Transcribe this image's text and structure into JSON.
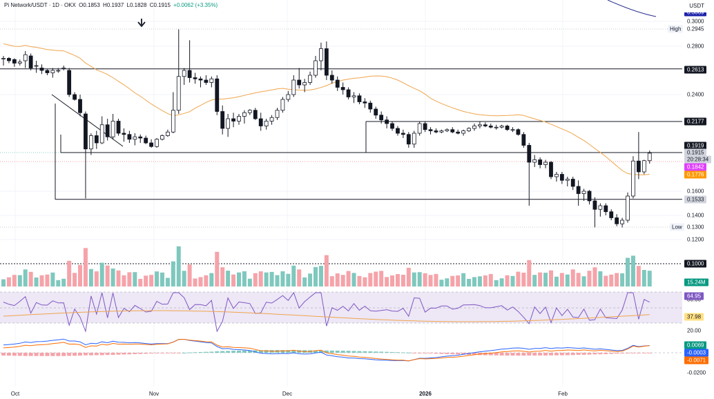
{
  "header": {
    "symbol": "Pi Network/USDT · 1D · OKX",
    "open": "O0.1853",
    "high": "H0.1937",
    "low": "L0.1828",
    "close": "C0.1915",
    "change": "+0.0062 (+3.35%)"
  },
  "axis_unit": "USDT",
  "price_ticks": [
    "0.3000",
    "0.2800",
    "0.2400",
    "0.1600",
    "0.1400",
    "0.1200"
  ],
  "price_labels": {
    "high_tag": "High",
    "high_value": "0.2945",
    "low_tag": "Low",
    "low_value": "0.1300",
    "top_partial": "0.3069",
    "level_2613": "0.2613",
    "level_2177": "0.2177",
    "level_1919": "0.1919",
    "last_price": "0.1915",
    "countdown": "20:28:34",
    "ma_fast": "0.1842",
    "ma_slow": "0.1776",
    "level_1533": "0.1533",
    "level_1000": "0.1000"
  },
  "volume_label": "15.24M",
  "rsi": {
    "value": "64.95",
    "partial": "80.00",
    "ma_value": "37.98",
    "tick_20": "20.00"
  },
  "macd": {
    "histogram": "0.0069",
    "macd_line": "-0.0003",
    "signal_line": "-0.0071",
    "tick_low": "-0.0200"
  },
  "x_labels": [
    {
      "text": "Oct",
      "bold": false
    },
    {
      "text": "Nov",
      "bold": false
    },
    {
      "text": "Dec",
      "bold": false
    },
    {
      "text": "2026",
      "bold": true
    },
    {
      "text": "Feb",
      "bold": false
    }
  ],
  "colors": {
    "up": "#089981",
    "down": "#f23645",
    "volume_up": "#7fc8be",
    "volume_down": "#f5a3a9",
    "ma_line": "#f0a44b",
    "rsi_line": "#7e57c2",
    "rsi_band": "#ede7f6",
    "macd_line": "#2962ff",
    "signal_line": "#ff6d00",
    "pill_pink": "#e040fb",
    "pill_orange": "#ff9800",
    "pill_black": "#131722",
    "pill_blue": "#1e22aa"
  },
  "icons": {
    "marker": "down-arrow-icon"
  },
  "chart_data": {
    "type": "candlestick",
    "x": [
      "Oct",
      "Nov",
      "Dec",
      "2026",
      "Feb"
    ],
    "ohlc_approx": [
      [
        0.27,
        0.272,
        0.264,
        0.27
      ],
      [
        0.27,
        0.271,
        0.266,
        0.268
      ],
      [
        0.269,
        0.27,
        0.263,
        0.266
      ],
      [
        0.266,
        0.269,
        0.264,
        0.267
      ],
      [
        0.268,
        0.276,
        0.262,
        0.273
      ],
      [
        0.272,
        0.274,
        0.26,
        0.262
      ],
      [
        0.264,
        0.268,
        0.258,
        0.264
      ],
      [
        0.262,
        0.265,
        0.257,
        0.26
      ],
      [
        0.26,
        0.261,
        0.256,
        0.258
      ],
      [
        0.258,
        0.262,
        0.254,
        0.26
      ],
      [
        0.26,
        0.262,
        0.258,
        0.26
      ],
      [
        0.262,
        0.264,
        0.26,
        0.262
      ],
      [
        0.26,
        0.262,
        0.238,
        0.24
      ],
      [
        0.24,
        0.242,
        0.235,
        0.236
      ],
      [
        0.236,
        0.24,
        0.222,
        0.225
      ],
      [
        0.224,
        0.226,
        0.154,
        0.195
      ],
      [
        0.195,
        0.208,
        0.19,
        0.206
      ],
      [
        0.206,
        0.21,
        0.195,
        0.2
      ],
      [
        0.2,
        0.222,
        0.199,
        0.215
      ],
      [
        0.215,
        0.22,
        0.202,
        0.205
      ],
      [
        0.205,
        0.224,
        0.203,
        0.218
      ],
      [
        0.218,
        0.22,
        0.206,
        0.208
      ],
      [
        0.208,
        0.212,
        0.201,
        0.207
      ],
      [
        0.207,
        0.21,
        0.2,
        0.203
      ],
      [
        0.203,
        0.208,
        0.198,
        0.205
      ],
      [
        0.205,
        0.207,
        0.2,
        0.204
      ],
      [
        0.204,
        0.206,
        0.199,
        0.2
      ],
      [
        0.2,
        0.203,
        0.196,
        0.197
      ],
      [
        0.197,
        0.204,
        0.196,
        0.203
      ],
      [
        0.203,
        0.207,
        0.202,
        0.206
      ],
      [
        0.206,
        0.211,
        0.205,
        0.209
      ],
      [
        0.209,
        0.242,
        0.208,
        0.227
      ],
      [
        0.227,
        0.294,
        0.224,
        0.255
      ],
      [
        0.255,
        0.262,
        0.248,
        0.26
      ],
      [
        0.26,
        0.285,
        0.25,
        0.254
      ],
      [
        0.254,
        0.258,
        0.249,
        0.253
      ],
      [
        0.253,
        0.255,
        0.246,
        0.252
      ],
      [
        0.252,
        0.256,
        0.248,
        0.25
      ],
      [
        0.25,
        0.255,
        0.246,
        0.253
      ],
      [
        0.253,
        0.256,
        0.223,
        0.226
      ],
      [
        0.226,
        0.231,
        0.207,
        0.212
      ],
      [
        0.212,
        0.224,
        0.205,
        0.22
      ],
      [
        0.22,
        0.225,
        0.213,
        0.218
      ],
      [
        0.218,
        0.224,
        0.215,
        0.222
      ],
      [
        0.222,
        0.227,
        0.216,
        0.225
      ],
      [
        0.225,
        0.228,
        0.223,
        0.227
      ],
      [
        0.227,
        0.229,
        0.219,
        0.22
      ],
      [
        0.22,
        0.225,
        0.21,
        0.214
      ],
      [
        0.214,
        0.22,
        0.211,
        0.218
      ],
      [
        0.218,
        0.223,
        0.215,
        0.221
      ],
      [
        0.221,
        0.229,
        0.219,
        0.227
      ],
      [
        0.227,
        0.238,
        0.225,
        0.236
      ],
      [
        0.236,
        0.243,
        0.234,
        0.24
      ],
      [
        0.24,
        0.256,
        0.238,
        0.252
      ],
      [
        0.252,
        0.262,
        0.245,
        0.248
      ],
      [
        0.248,
        0.253,
        0.242,
        0.25
      ],
      [
        0.25,
        0.259,
        0.248,
        0.256
      ],
      [
        0.256,
        0.272,
        0.254,
        0.268
      ],
      [
        0.268,
        0.283,
        0.26,
        0.278
      ],
      [
        0.278,
        0.284,
        0.252,
        0.256
      ],
      [
        0.256,
        0.26,
        0.249,
        0.252
      ],
      [
        0.252,
        0.255,
        0.243,
        0.246
      ],
      [
        0.246,
        0.25,
        0.24,
        0.244
      ],
      [
        0.244,
        0.246,
        0.236,
        0.238
      ],
      [
        0.238,
        0.242,
        0.233,
        0.239
      ],
      [
        0.239,
        0.241,
        0.232,
        0.234
      ],
      [
        0.234,
        0.237,
        0.229,
        0.233
      ],
      [
        0.233,
        0.235,
        0.225,
        0.228
      ],
      [
        0.228,
        0.23,
        0.22,
        0.223
      ],
      [
        0.223,
        0.226,
        0.216,
        0.219
      ],
      [
        0.219,
        0.222,
        0.212,
        0.216
      ],
      [
        0.216,
        0.218,
        0.21,
        0.212
      ],
      [
        0.212,
        0.214,
        0.206,
        0.208
      ],
      [
        0.208,
        0.211,
        0.204,
        0.207
      ],
      [
        0.207,
        0.209,
        0.196,
        0.199
      ],
      [
        0.199,
        0.21,
        0.196,
        0.208
      ],
      [
        0.208,
        0.218,
        0.206,
        0.216
      ],
      [
        0.216,
        0.218,
        0.209,
        0.211
      ],
      [
        0.211,
        0.213,
        0.207,
        0.21
      ],
      [
        0.21,
        0.212,
        0.208,
        0.209
      ],
      [
        0.209,
        0.211,
        0.208,
        0.21
      ],
      [
        0.21,
        0.212,
        0.209,
        0.211
      ],
      [
        0.211,
        0.213,
        0.208,
        0.209
      ],
      [
        0.209,
        0.211,
        0.207,
        0.208
      ],
      [
        0.208,
        0.211,
        0.206,
        0.21
      ],
      [
        0.21,
        0.213,
        0.209,
        0.212
      ],
      [
        0.212,
        0.216,
        0.21,
        0.214
      ],
      [
        0.214,
        0.218,
        0.212,
        0.215
      ],
      [
        0.215,
        0.217,
        0.213,
        0.214
      ],
      [
        0.214,
        0.216,
        0.212,
        0.213
      ],
      [
        0.213,
        0.215,
        0.211,
        0.213
      ],
      [
        0.213,
        0.215,
        0.212,
        0.214
      ],
      [
        0.214,
        0.215,
        0.21,
        0.211
      ],
      [
        0.211,
        0.213,
        0.209,
        0.211
      ],
      [
        0.211,
        0.212,
        0.206,
        0.207
      ],
      [
        0.207,
        0.209,
        0.196,
        0.198
      ],
      [
        0.198,
        0.2,
        0.148,
        0.184
      ],
      [
        0.184,
        0.19,
        0.18,
        0.186
      ],
      [
        0.186,
        0.188,
        0.179,
        0.182
      ],
      [
        0.182,
        0.186,
        0.179,
        0.184
      ],
      [
        0.184,
        0.185,
        0.17,
        0.172
      ],
      [
        0.172,
        0.176,
        0.168,
        0.174
      ],
      [
        0.174,
        0.176,
        0.166,
        0.169
      ],
      [
        0.169,
        0.172,
        0.164,
        0.17
      ],
      [
        0.17,
        0.172,
        0.161,
        0.164
      ],
      [
        0.164,
        0.169,
        0.148,
        0.158
      ],
      [
        0.158,
        0.162,
        0.152,
        0.16
      ],
      [
        0.16,
        0.161,
        0.149,
        0.152
      ],
      [
        0.152,
        0.155,
        0.13,
        0.145
      ],
      [
        0.145,
        0.15,
        0.139,
        0.148
      ],
      [
        0.148,
        0.15,
        0.14,
        0.143
      ],
      [
        0.143,
        0.145,
        0.136,
        0.138
      ],
      [
        0.138,
        0.141,
        0.131,
        0.133
      ],
      [
        0.133,
        0.138,
        0.13,
        0.136
      ],
      [
        0.136,
        0.159,
        0.134,
        0.156
      ],
      [
        0.156,
        0.189,
        0.154,
        0.185
      ],
      [
        0.185,
        0.209,
        0.17,
        0.176
      ],
      [
        0.176,
        0.186,
        0.174,
        0.1853
      ],
      [
        0.1853,
        0.1937,
        0.1828,
        0.1915
      ]
    ],
    "ylim": [
      0.1,
      0.3
    ],
    "price_axis_ticks": [
      0.3,
      0.28,
      0.24,
      0.16,
      0.14,
      0.12
    ],
    "horizontal_levels": [
      0.2613,
      0.2177,
      0.1919,
      0.1533,
      0.1
    ],
    "high": 0.2945,
    "low": 0.13,
    "last": 0.1915,
    "moving_averages": [
      {
        "value": 0.1842
      },
      {
        "value": 0.1776
      }
    ],
    "volume_last": "15.24M",
    "rsi": {
      "value": 64.95,
      "ma": 37.98,
      "levels": [
        80,
        20
      ]
    },
    "macd": {
      "histogram": 0.0069,
      "macd": -0.0003,
      "signal": -0.0071
    }
  }
}
